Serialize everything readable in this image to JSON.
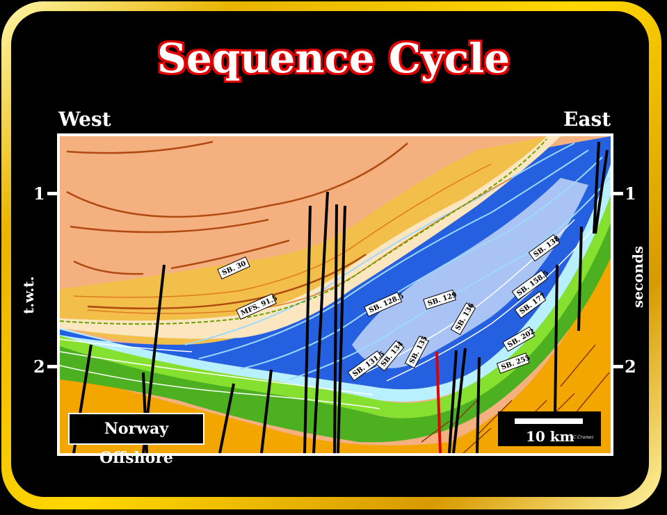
{
  "title": "Sequence Cycle",
  "west": "West",
  "east": "East",
  "left_axis": {
    "label": "t.w.t.",
    "ticks": [
      "1",
      "2"
    ]
  },
  "right_axis": {
    "label": "seconds",
    "ticks": [
      "1",
      "2"
    ]
  },
  "location": "Norway Offshore",
  "scale": {
    "label": "10 km",
    "credit": "C.Cramez"
  },
  "horizons": [
    "SB. 30",
    "MFS. 91.5",
    "SB. 128.5",
    "SB. 129",
    "SB. 136",
    "SB. 131.5",
    "SB. 134",
    "SB. 135",
    "SB. 138",
    "SB. 158.5",
    "SB. 177",
    "SB. 202",
    "SB. 255"
  ],
  "colors": {
    "frame": "#e8b400",
    "title_outline": "#e00000",
    "upper": "#f5b080",
    "yellow": "#f2c04a",
    "blue": "#2255dd",
    "green": "#66c81e",
    "orange": "#f3a500"
  }
}
